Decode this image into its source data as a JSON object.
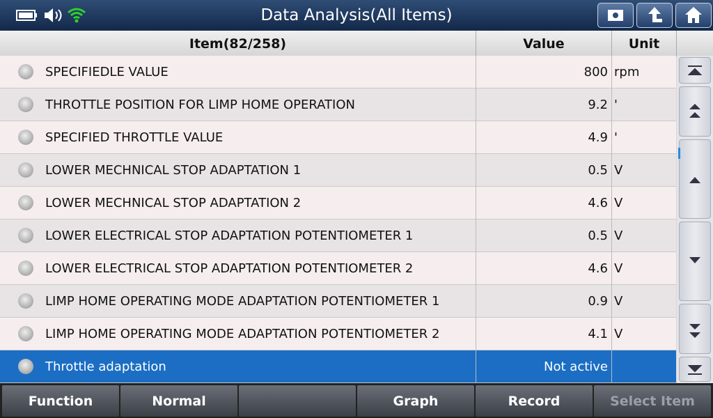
{
  "header": {
    "title": "Data Analysis(All Items)"
  },
  "table": {
    "columns": [
      "Item(82/258)",
      "Value",
      "Unit"
    ],
    "rows": [
      {
        "name": "SPECIFIEDLE VALUE",
        "value": 800,
        "unit": "rpm"
      },
      {
        "name": "THROTTLE POSITION FOR LIMP HOME OPERATION",
        "value": 9.2,
        "unit": "'"
      },
      {
        "name": "SPECIFIED THROTTLE VALUE",
        "value": 4.9,
        "unit": "'"
      },
      {
        "name": "LOWER MECHNICAL STOP ADAPTATION 1",
        "value": 0.5,
        "unit": "V"
      },
      {
        "name": "LOWER MECHNICAL STOP ADAPTATION 2",
        "value": 4.6,
        "unit": "V"
      },
      {
        "name": "LOWER ELECTRICAL STOP ADAPTATION POTENTIOMETER 1",
        "value": 0.5,
        "unit": "V"
      },
      {
        "name": "LOWER ELECTRICAL STOP ADAPTATION POTENTIOMETER 2",
        "value": 4.6,
        "unit": "V"
      },
      {
        "name": "LIMP HOME OPERATING MODE ADAPTATION POTENTIOMETER 1",
        "value": 0.9,
        "unit": "V"
      },
      {
        "name": "LIMP HOME OPERATING MODE ADAPTATION POTENTIOMETER 2",
        "value": 4.1,
        "unit": "V"
      },
      {
        "name": "Throttle adaptation",
        "value": "Not active"
      }
    ]
  },
  "footer": {
    "buttons": [
      "Function",
      "Normal",
      "Graph",
      "Record",
      "Select Item"
    ]
  }
}
